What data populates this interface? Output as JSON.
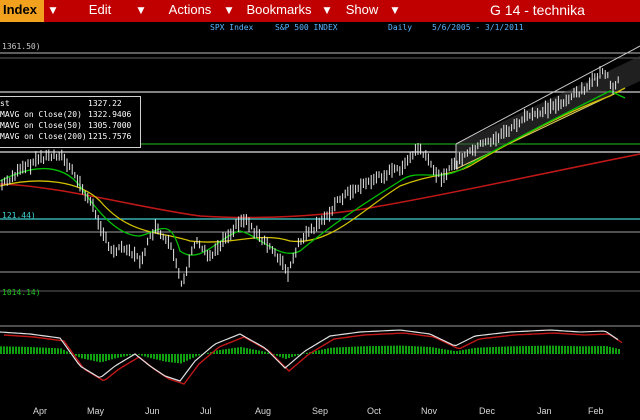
{
  "toolbar": {
    "index_label": "Index",
    "edit_label": "Edit",
    "actions_label": "Actions",
    "bookmarks_label": "Bookmarks",
    "show_label": "Show",
    "window_title": "G 14 - technika"
  },
  "info": {
    "ticker": "SPX Index",
    "name": "S&P 500 INDEX",
    "period": "Daily",
    "range": "5/6/2005 - 3/1/2011"
  },
  "legend": {
    "rows": [
      {
        "label": "st",
        "value": "1327.22"
      },
      {
        "label": "MAVG on Close(20)",
        "value": "1322.9406"
      },
      {
        "label": "MAVG on Close(50)",
        "value": "1305.7000"
      },
      {
        "label": "MAVG on Close(200)",
        "value": "1215.7576"
      }
    ]
  },
  "levels": {
    "top": "1361.50)",
    "mid": "121.44)",
    "low": "1014.14)"
  },
  "months": [
    "Apr",
    "May",
    "Jun",
    "Jul",
    "Aug",
    "Sep",
    "Oct",
    "Nov",
    "Dec",
    "Jan",
    "Feb"
  ],
  "colors": {
    "toolbar_bg": "#c00000",
    "index_bg": "#f2a11f",
    "info_text": "#5ab4ff",
    "ma20": "#00c000",
    "ma50": "#d0c000",
    "ma200": "#c01818",
    "channel": "#c8c8c8",
    "level_cyan": "#40d0d0"
  }
}
